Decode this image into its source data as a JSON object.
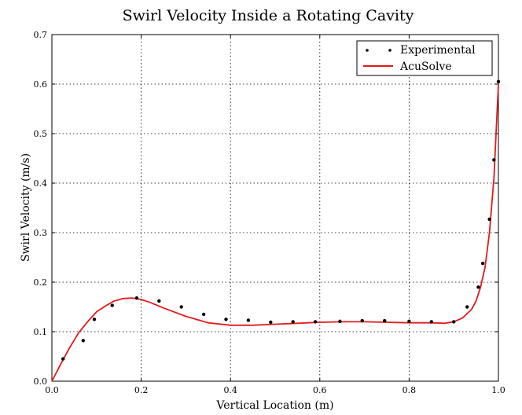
{
  "chart_data": {
    "type": "line",
    "title": "Swirl Velocity Inside a Rotating Cavity",
    "xlabel": "Vertical Location (m)",
    "ylabel": "Swirl Velocity (m/s)",
    "xlim": [
      0.0,
      1.0
    ],
    "ylim": [
      0.0,
      0.7
    ],
    "xticks": [
      "0.0",
      "0.2",
      "0.4",
      "0.6",
      "0.8",
      "1.0"
    ],
    "yticks": [
      "0.0",
      "0.1",
      "0.2",
      "0.3",
      "0.4",
      "0.5",
      "0.6",
      "0.7"
    ],
    "grid": true,
    "legend": "top-right",
    "series": [
      {
        "name": "Experimental",
        "style": "markers",
        "color": "#000000",
        "x": [
          0.025,
          0.07,
          0.095,
          0.135,
          0.19,
          0.24,
          0.29,
          0.34,
          0.39,
          0.44,
          0.49,
          0.54,
          0.59,
          0.645,
          0.695,
          0.745,
          0.8,
          0.85,
          0.9,
          0.93,
          0.955,
          0.965,
          0.98,
          0.99,
          1.0
        ],
        "y": [
          0.045,
          0.082,
          0.125,
          0.153,
          0.168,
          0.162,
          0.15,
          0.135,
          0.125,
          0.123,
          0.119,
          0.12,
          0.12,
          0.121,
          0.122,
          0.122,
          0.121,
          0.12,
          0.12,
          0.15,
          0.19,
          0.238,
          0.327,
          0.447,
          0.605
        ]
      },
      {
        "name": "AcuSolve",
        "style": "line",
        "color": "#e31a1c",
        "x": [
          0.0,
          0.02,
          0.04,
          0.06,
          0.08,
          0.1,
          0.12,
          0.14,
          0.16,
          0.18,
          0.2,
          0.22,
          0.25,
          0.3,
          0.35,
          0.4,
          0.45,
          0.5,
          0.55,
          0.6,
          0.65,
          0.7,
          0.75,
          0.8,
          0.85,
          0.88,
          0.9,
          0.92,
          0.94,
          0.95,
          0.96,
          0.97,
          0.98,
          0.99,
          1.0
        ],
        "y": [
          0.0,
          0.035,
          0.068,
          0.098,
          0.12,
          0.14,
          0.152,
          0.162,
          0.167,
          0.168,
          0.165,
          0.159,
          0.148,
          0.131,
          0.118,
          0.113,
          0.113,
          0.115,
          0.117,
          0.119,
          0.12,
          0.12,
          0.119,
          0.118,
          0.118,
          0.117,
          0.12,
          0.128,
          0.145,
          0.162,
          0.19,
          0.23,
          0.3,
          0.41,
          0.6
        ]
      }
    ]
  }
}
